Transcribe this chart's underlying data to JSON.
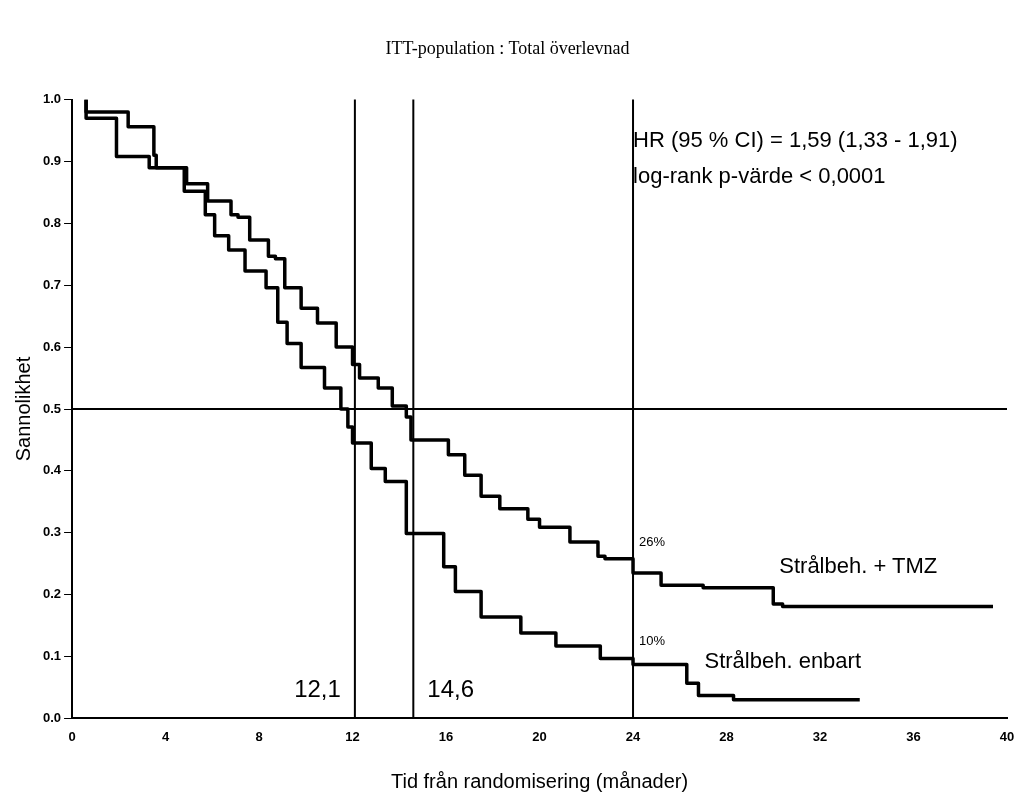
{
  "chart_data": {
    "type": "step",
    "title": "ITT-population : Total överlevnad",
    "xlabel": "Tid från randomisering (månader)",
    "ylabel": "Sannolikhet",
    "xlim": [
      0,
      40
    ],
    "xticks": [
      0,
      4,
      8,
      12,
      16,
      20,
      24,
      28,
      32,
      36,
      40
    ],
    "ylim": [
      0,
      1
    ],
    "yticks": [
      {
        "value": 0,
        "label": "0.0"
      },
      0.1,
      0.2,
      0.3,
      0.4,
      0.5,
      0.6,
      0.7,
      0.8,
      0.9,
      {
        "value": 1,
        "label": "1.0"
      }
    ],
    "grid": false,
    "legend": false,
    "marker": "none",
    "line_style": "solid",
    "series": [
      {
        "name": "Strålbeh. + TMZ",
        "color": "#000000",
        "x": [
          0.6,
          2.4,
          3.5,
          3.6,
          4.9,
          5.8,
          6.8,
          7.1,
          7.6,
          8.4,
          8.7,
          9.1,
          9.8,
          10.5,
          11.3,
          12.0,
          12.3,
          13.1,
          13.7,
          14.3,
          14.5,
          16.1,
          16.8,
          17.5,
          18.3,
          19.5,
          20.0,
          21.3,
          22.5,
          22.8,
          24.0,
          25.2,
          27.0,
          30.0,
          30.4,
          39.4
        ],
        "values": [
          1.0,
          0.98,
          0.956,
          0.91,
          0.89,
          0.864,
          0.836,
          0.814,
          0.81,
          0.773,
          0.747,
          0.743,
          0.696,
          0.663,
          0.639,
          0.6,
          0.572,
          0.55,
          0.534,
          0.505,
          0.487,
          0.45,
          0.426,
          0.393,
          0.359,
          0.339,
          0.322,
          0.309,
          0.285,
          0.262,
          0.258,
          0.235,
          0.215,
          0.211,
          0.185,
          0.181
        ]
      },
      {
        "name": "Strålbeh. enbart",
        "color": "#000000",
        "x": [
          0.6,
          1.9,
          3.3,
          4.8,
          5.7,
          6.1,
          6.7,
          7.4,
          8.3,
          8.8,
          9.2,
          9.8,
          10.8,
          11.5,
          11.8,
          12.0,
          12.8,
          13.4,
          14.3,
          15.9,
          16.4,
          17.5,
          19.2,
          20.7,
          22.6,
          24.0,
          26.3,
          26.8,
          28.3,
          33.7
        ],
        "values": [
          1.0,
          0.97,
          0.908,
          0.89,
          0.852,
          0.814,
          0.78,
          0.757,
          0.723,
          0.696,
          0.64,
          0.606,
          0.567,
          0.534,
          0.5,
          0.471,
          0.445,
          0.404,
          0.383,
          0.299,
          0.245,
          0.205,
          0.164,
          0.138,
          0.117,
          0.097,
          0.087,
          0.057,
          0.037,
          0.03
        ]
      }
    ],
    "ref_lines": [
      {
        "axis": "y",
        "value": 0.5
      },
      {
        "axis": "x",
        "value": 12.1,
        "label": "12,1"
      },
      {
        "axis": "x",
        "value": 14.6,
        "label": "14,6"
      },
      {
        "axis": "x",
        "value": 24
      }
    ],
    "annotations": [
      "HR (95 % CI) = 1,59 (1,33 - 1,91)",
      "log-rank p-värde < 0,0001",
      {
        "text": "26%",
        "x": 24,
        "y": 0.258
      },
      {
        "text": "10%",
        "x": 24,
        "y": 0.097
      }
    ]
  }
}
